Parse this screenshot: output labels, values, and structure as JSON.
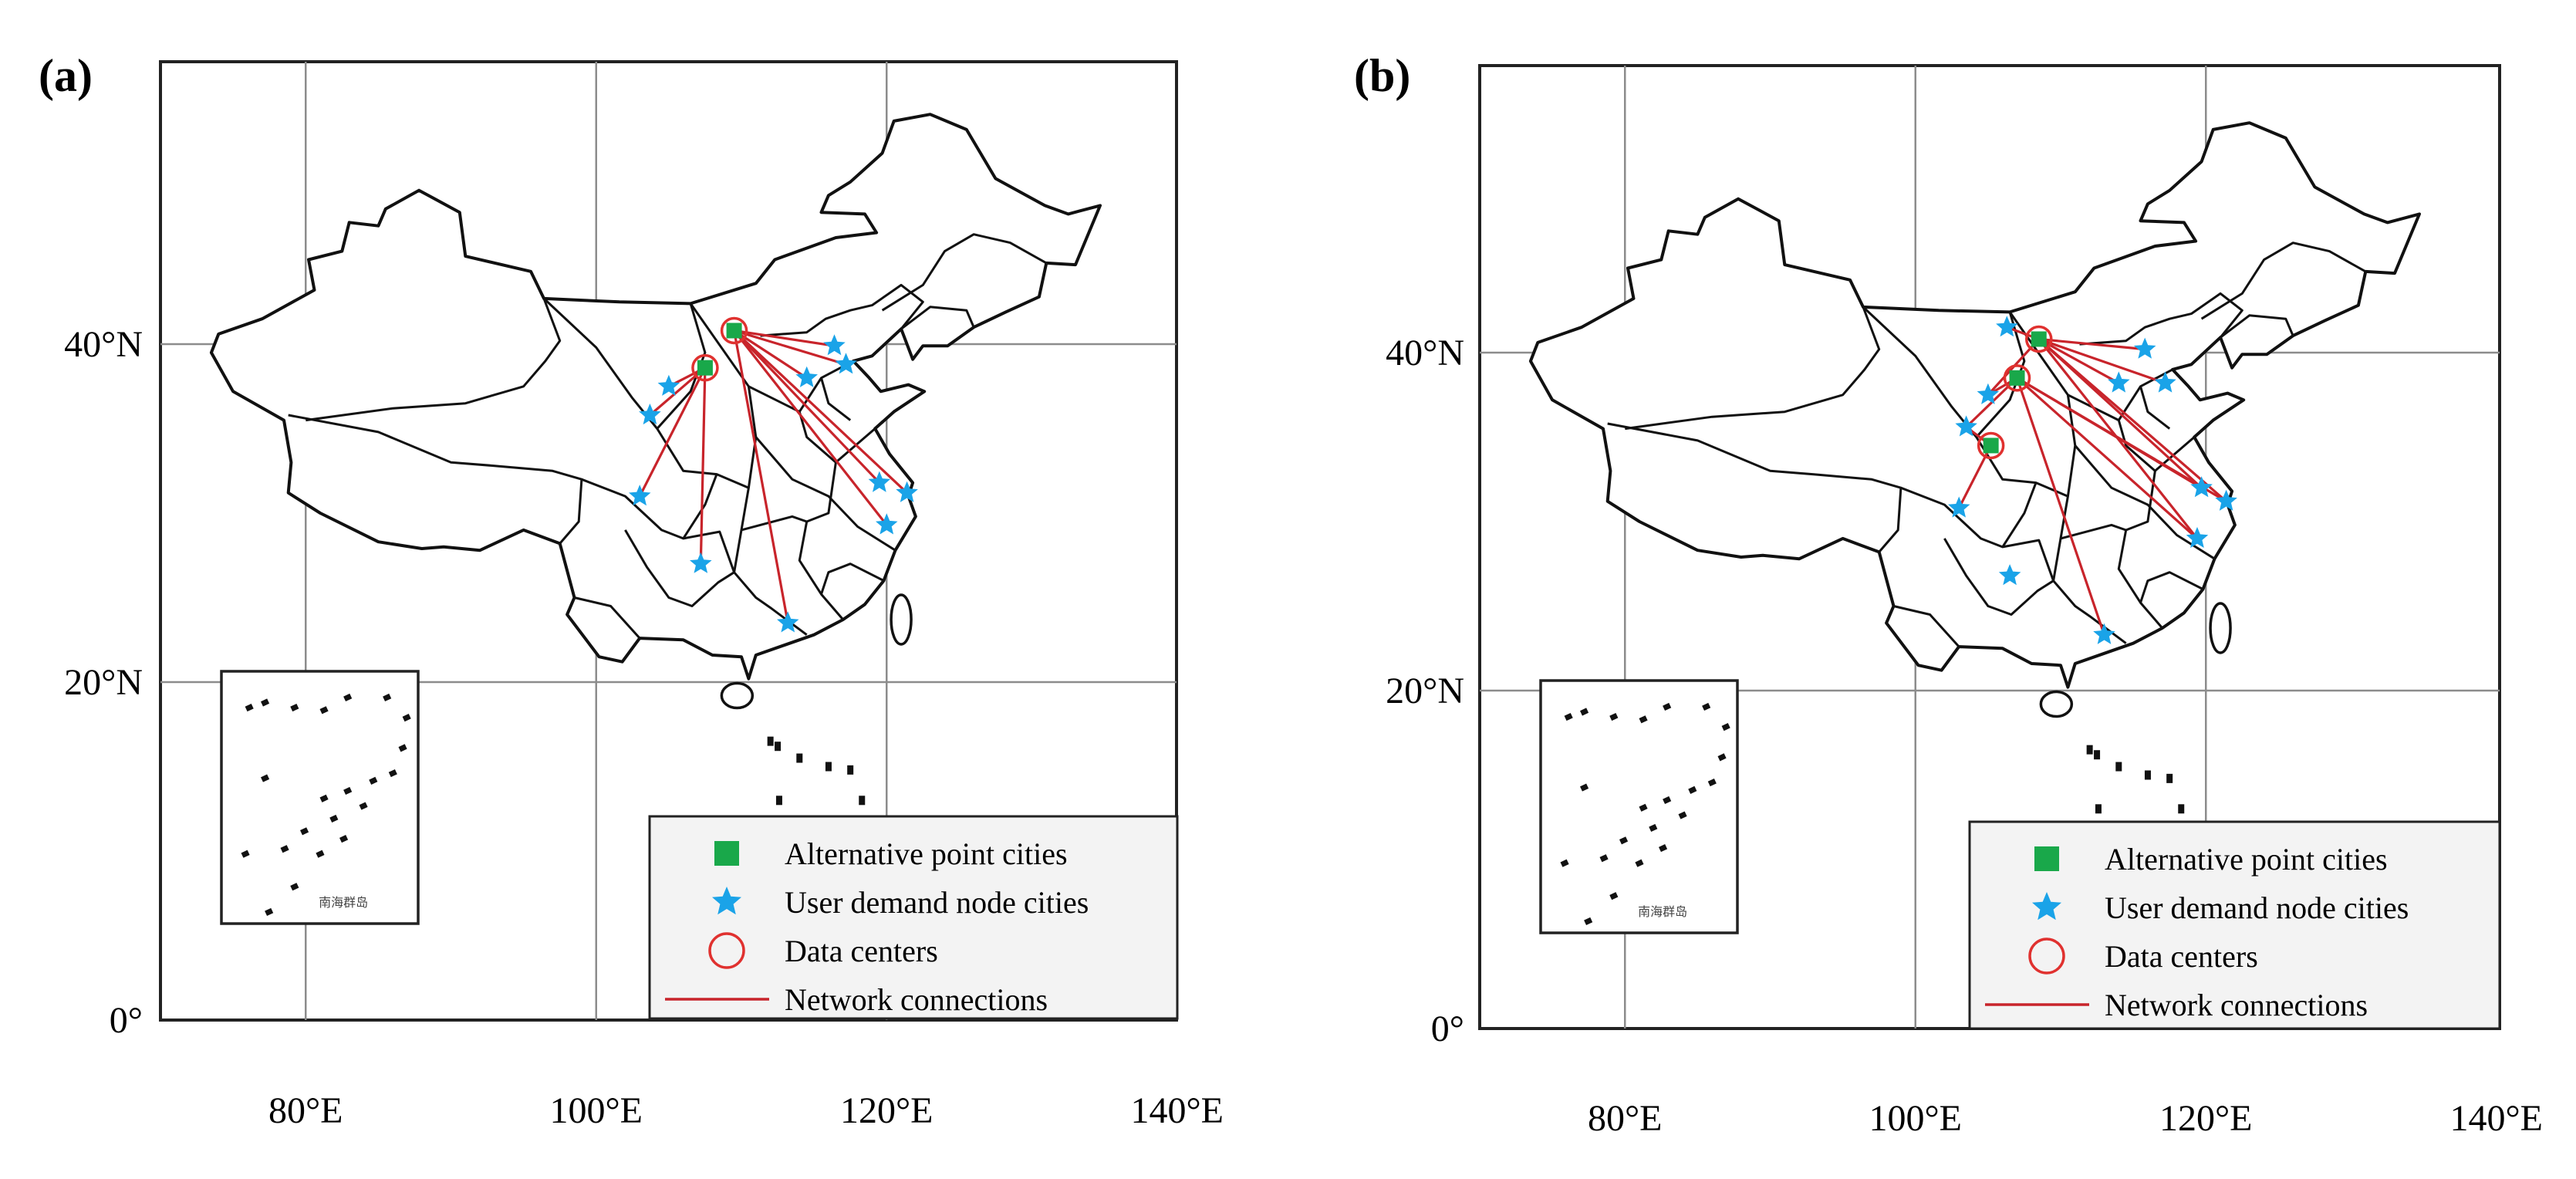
{
  "figure": {
    "panels": [
      {
        "id": "a",
        "label": "(a)",
        "y_ticks": [
          "40°N",
          "20°N",
          "0°"
        ],
        "x_ticks": [
          "80°E",
          "100°E",
          "120°E",
          "140°E"
        ],
        "inset_label": "南海群岛",
        "legend": [
          {
            "key": "alt",
            "label": "Alternative point cities",
            "color": "#19a84a"
          },
          {
            "key": "user",
            "label": "User demand node cities",
            "color": "#1aa3e8"
          },
          {
            "key": "dc",
            "label": "Data centers",
            "color": "#e0312f"
          },
          {
            "key": "net",
            "label": "Network connections",
            "color": "#c8242b"
          }
        ],
        "data_centers": [
          [
            109.5,
            40.8
          ],
          [
            107.5,
            38.6
          ]
        ],
        "alternative_cities": [
          [
            109.5,
            40.8
          ],
          [
            107.5,
            38.6
          ]
        ],
        "user_cities": [
          [
            105.0,
            37.5
          ],
          [
            103.7,
            35.8
          ],
          [
            103.0,
            31.0
          ],
          [
            107.2,
            27.0
          ],
          [
            116.4,
            39.9
          ],
          [
            114.5,
            38.0
          ],
          [
            117.2,
            38.8
          ],
          [
            113.2,
            23.5
          ],
          [
            119.5,
            31.8
          ],
          [
            121.4,
            31.2
          ],
          [
            120.0,
            29.3
          ]
        ],
        "connections": [
          {
            "from": 0,
            "to": [
              4,
              5,
              6,
              7,
              8,
              9,
              10
            ]
          },
          {
            "from": 1,
            "to": [
              0,
              1,
              2,
              3
            ]
          }
        ]
      },
      {
        "id": "b",
        "label": "(b)",
        "y_ticks": [
          "40°N",
          "20°N",
          "0°"
        ],
        "x_ticks": [
          "80°E",
          "100°E",
          "120°E",
          "140°E"
        ],
        "inset_label": "南海群岛",
        "legend": [
          {
            "key": "alt",
            "label": "Alternative point cities",
            "color": "#19a84a"
          },
          {
            "key": "user",
            "label": "User demand node cities",
            "color": "#1aa3e8"
          },
          {
            "key": "dc",
            "label": "Data centers",
            "color": "#e0312f"
          },
          {
            "key": "net",
            "label": "Network connections",
            "color": "#c8242b"
          }
        ],
        "data_centers": [
          [
            108.5,
            40.8
          ],
          [
            107.0,
            38.5
          ],
          [
            105.2,
            34.5
          ]
        ],
        "alternative_cities": [
          [
            108.5,
            40.8
          ],
          [
            107.0,
            38.5
          ],
          [
            105.2,
            34.5
          ]
        ],
        "user_cities": [
          [
            106.3,
            41.5
          ],
          [
            105.0,
            37.5
          ],
          [
            103.5,
            35.6
          ],
          [
            103.0,
            30.8
          ],
          [
            106.5,
            26.8
          ],
          [
            115.8,
            40.2
          ],
          [
            114.0,
            38.2
          ],
          [
            117.2,
            38.2
          ],
          [
            119.7,
            32.0
          ],
          [
            121.4,
            31.2
          ],
          [
            119.4,
            29.0
          ],
          [
            113.0,
            23.3
          ]
        ],
        "connections": [
          {
            "from": 0,
            "to": [
              0,
              1,
              5,
              6,
              7,
              8,
              9,
              10
            ]
          },
          {
            "from": 1,
            "to": [
              1,
              2,
              8,
              9,
              10,
              11
            ]
          },
          {
            "from": 2,
            "to": [
              2,
              3
            ]
          }
        ]
      }
    ]
  }
}
